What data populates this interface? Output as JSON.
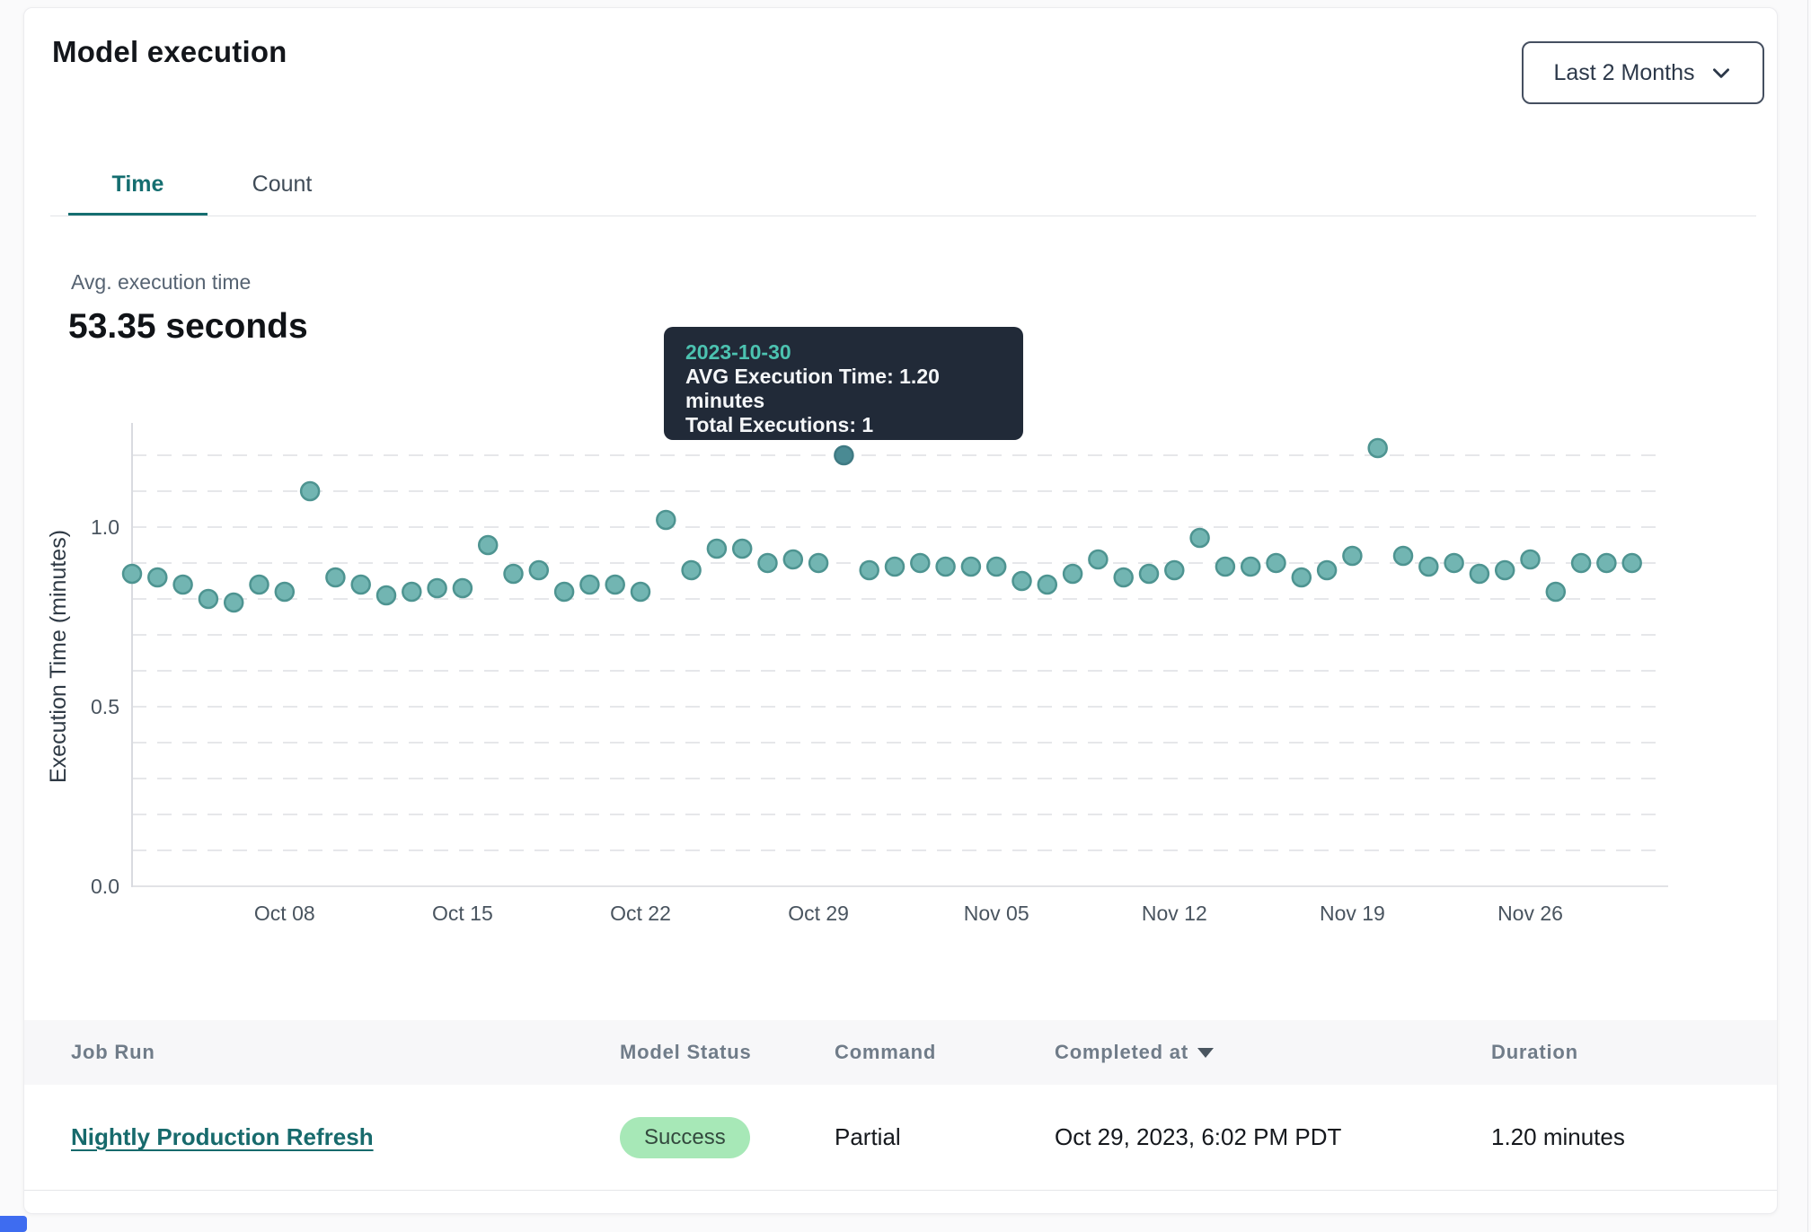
{
  "header": {
    "title": "Model execution",
    "range_selector": "Last 2 Months"
  },
  "tabs": [
    {
      "label": "Time",
      "active": true
    },
    {
      "label": "Count",
      "active": false
    }
  ],
  "summary": {
    "label": "Avg. execution time",
    "value": "53.35 seconds"
  },
  "tooltip": {
    "date": "2023-10-30",
    "line1": "AVG Execution Time: 1.20 minutes",
    "line2": "Total Executions: 1"
  },
  "chart_data": {
    "type": "scatter",
    "title": "",
    "xlabel": "",
    "ylabel": "Execution Time (minutes)",
    "ylim": [
      0,
      1.25
    ],
    "yticks": [
      0.0,
      0.5,
      1.0
    ],
    "grid": "dashed horizontal lines every 0.1 from 0.0 to 1.2",
    "legend": "none",
    "highlight_date": "2023-10-30",
    "xticks": [
      {
        "label": "Oct 08",
        "date": "2023-10-08"
      },
      {
        "label": "Oct 15",
        "date": "2023-10-15"
      },
      {
        "label": "Oct 22",
        "date": "2023-10-22"
      },
      {
        "label": "Oct 29",
        "date": "2023-10-29"
      },
      {
        "label": "Nov 05",
        "date": "2023-11-05"
      },
      {
        "label": "Nov 12",
        "date": "2023-11-12"
      },
      {
        "label": "Nov 19",
        "date": "2023-11-19"
      },
      {
        "label": "Nov 26",
        "date": "2023-11-26"
      }
    ],
    "series": [
      {
        "name": "AVG Execution Time (minutes)",
        "x": [
          "2023-10-02",
          "2023-10-03",
          "2023-10-04",
          "2023-10-05",
          "2023-10-06",
          "2023-10-07",
          "2023-10-08",
          "2023-10-09",
          "2023-10-10",
          "2023-10-11",
          "2023-10-12",
          "2023-10-13",
          "2023-10-14",
          "2023-10-15",
          "2023-10-16",
          "2023-10-17",
          "2023-10-18",
          "2023-10-19",
          "2023-10-20",
          "2023-10-21",
          "2023-10-22",
          "2023-10-23",
          "2023-10-24",
          "2023-10-25",
          "2023-10-26",
          "2023-10-27",
          "2023-10-28",
          "2023-10-29",
          "2023-10-30",
          "2023-10-31",
          "2023-11-01",
          "2023-11-02",
          "2023-11-03",
          "2023-11-04",
          "2023-11-05",
          "2023-11-06",
          "2023-11-07",
          "2023-11-08",
          "2023-11-09",
          "2023-11-10",
          "2023-11-11",
          "2023-11-12",
          "2023-11-13",
          "2023-11-14",
          "2023-11-15",
          "2023-11-16",
          "2023-11-17",
          "2023-11-18",
          "2023-11-19",
          "2023-11-20",
          "2023-11-21",
          "2023-11-22",
          "2023-11-23",
          "2023-11-24",
          "2023-11-25",
          "2023-11-26",
          "2023-11-27",
          "2023-11-28",
          "2023-11-29",
          "2023-11-30"
        ],
        "y": [
          0.87,
          0.86,
          0.84,
          0.8,
          0.79,
          0.84,
          0.82,
          1.1,
          0.86,
          0.84,
          0.81,
          0.82,
          0.83,
          0.83,
          0.95,
          0.87,
          0.88,
          0.82,
          0.84,
          0.84,
          0.82,
          1.02,
          0.88,
          0.94,
          0.94,
          0.9,
          0.91,
          0.9,
          1.2,
          0.88,
          0.89,
          0.9,
          0.89,
          0.89,
          0.89,
          0.85,
          0.84,
          0.87,
          0.91,
          0.86,
          0.87,
          0.88,
          0.97,
          0.89,
          0.89,
          0.9,
          0.86,
          0.88,
          0.92,
          1.22,
          0.92,
          0.89,
          0.9,
          0.87,
          0.88,
          0.91,
          0.82,
          0.9,
          0.9,
          0.9
        ]
      }
    ],
    "colors": {
      "point_fill": "#72b5b2",
      "point_stroke": "#4e9491",
      "highlight_fill": "#4a8a93",
      "highlight_stroke": "#3f7a83",
      "grid": "#e6e7ea",
      "axis_text": "#49545f"
    }
  },
  "table": {
    "columns": [
      "Job Run",
      "Model Status",
      "Command",
      "Completed at",
      "Duration"
    ],
    "sorted_column": "Completed at",
    "rows": [
      {
        "job_run": "Nightly Production Refresh",
        "model_status": "Success",
        "command": "Partial",
        "completed_at": "Oct 29, 2023, 6:02 PM PDT",
        "duration": "1.20 minutes"
      }
    ]
  }
}
